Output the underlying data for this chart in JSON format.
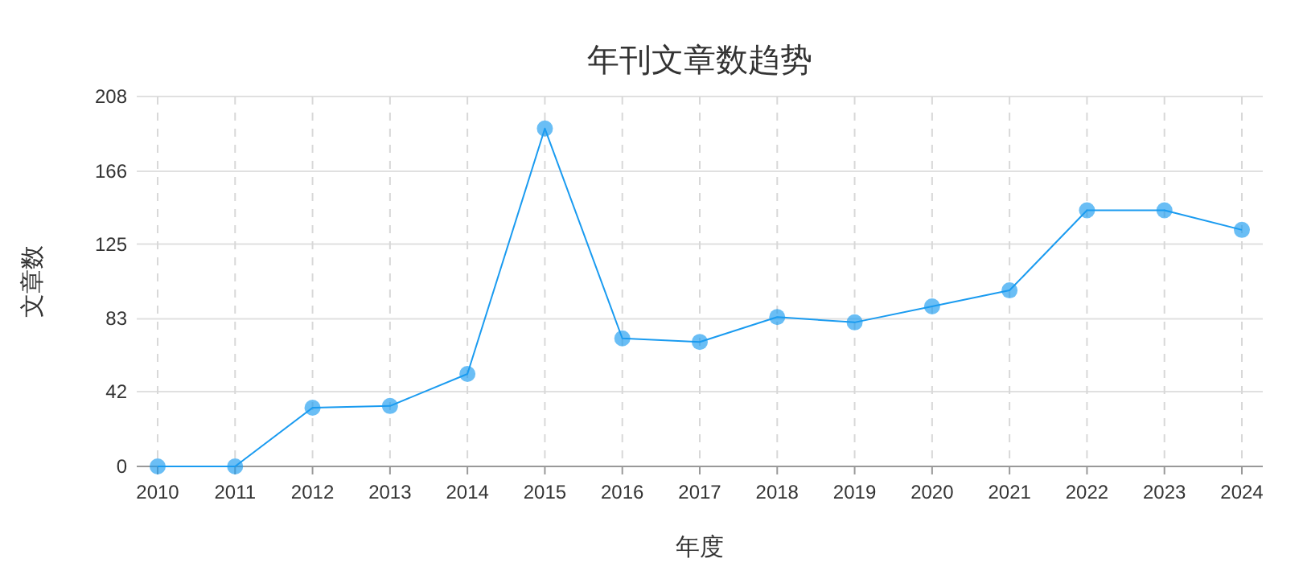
{
  "chart_data": {
    "type": "line",
    "title": "年刊文章数趋势",
    "xlabel": "年度",
    "ylabel": "文章数",
    "categories": [
      "2010",
      "2011",
      "2012",
      "2013",
      "2014",
      "2015",
      "2016",
      "2017",
      "2018",
      "2019",
      "2020",
      "2021",
      "2022",
      "2023",
      "2024"
    ],
    "series": [
      {
        "color": "#1a9bf0",
        "values": [
          0,
          0,
          33,
          34,
          52,
          190,
          72,
          70,
          84,
          81,
          90,
          99,
          144,
          144,
          133
        ]
      }
    ],
    "ylim": [
      0,
      208
    ],
    "yticks": [
      0,
      42,
      83,
      125,
      166,
      208
    ],
    "grid": true,
    "marker": "circle",
    "line_style": "solid"
  }
}
